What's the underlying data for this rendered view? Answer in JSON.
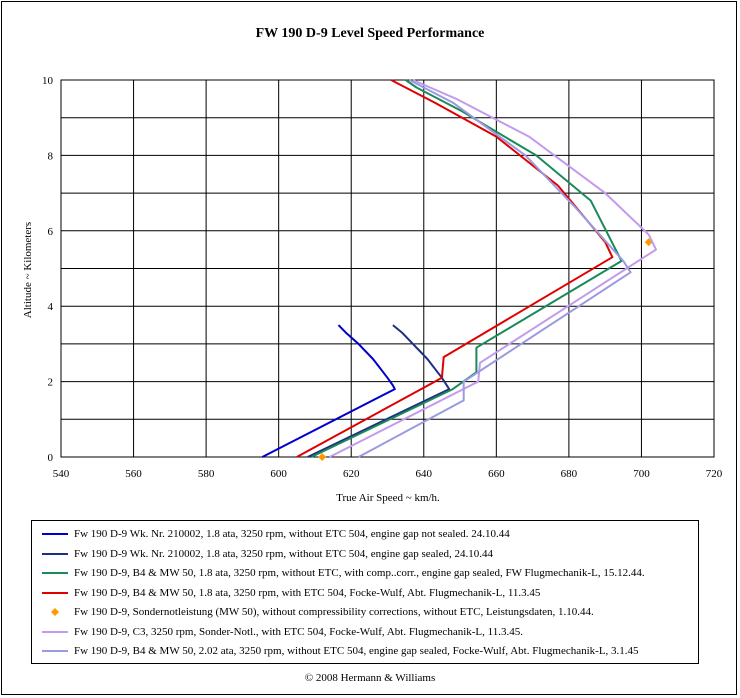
{
  "chart_data": {
    "type": "line",
    "title": "FW 190 D-9 Level Speed Performance",
    "xlabel": "True Air Speed ~ km/h.",
    "ylabel": "Altitude ~ Kilometers",
    "xlim": [
      540,
      720
    ],
    "ylim": [
      0,
      10
    ],
    "x_ticks": [
      "540",
      "560",
      "580",
      "600",
      "620",
      "640",
      "660",
      "680",
      "700",
      "720"
    ],
    "y_ticks": [
      "0",
      "2",
      "4",
      "6",
      "8",
      "10"
    ],
    "grid": true,
    "legend_position": "bottom",
    "series": [
      {
        "name": "Fw 190 D-9 Wk. Nr. 210002, 1.8 ata,  3250 rpm, without ETC 504, engine gap not sealed. 24.10.44",
        "color": "#0000cc",
        "kind": "line",
        "points": [
          [
            595.5,
            0.0
          ],
          [
            632.0,
            1.8
          ],
          [
            631.5,
            1.9
          ],
          [
            630.0,
            2.1
          ],
          [
            626.0,
            2.6
          ],
          [
            622.0,
            3.0
          ],
          [
            618.5,
            3.3
          ],
          [
            616.5,
            3.5
          ]
        ]
      },
      {
        "name": "Fw 190 D-9 Wk. Nr. 210002, 1.8 ata,  3250 rpm, without ETC 504, engine gap sealed, 24.10.44",
        "color": "#1f2f7f",
        "kind": "line",
        "points": [
          [
            608.0,
            0.0
          ],
          [
            647.0,
            1.8
          ],
          [
            645.0,
            2.1
          ],
          [
            641.0,
            2.6
          ],
          [
            637.0,
            3.0
          ],
          [
            634.0,
            3.3
          ],
          [
            631.5,
            3.5
          ]
        ]
      },
      {
        "name": "Fw 190 D-9, B4 & MW 50, 1.8 ata, 3250 rpm, without ETC, with comp..corr., engine gap sealed, FW Flugmechanik-L, 15.12.44.",
        "color": "#1a8a5a",
        "kind": "line",
        "points": [
          [
            609.0,
            0.0
          ],
          [
            648.0,
            1.8
          ],
          [
            654.5,
            2.25
          ],
          [
            654.5,
            2.9
          ],
          [
            694.5,
            5.2
          ],
          [
            686.0,
            6.8
          ],
          [
            671.0,
            8.0
          ],
          [
            650.0,
            9.2
          ],
          [
            638.0,
            9.8
          ],
          [
            635.0,
            10.0
          ]
        ]
      },
      {
        "name": "Fw 190 D-9, B4 & MW 50, 1.8 ata, 3250 rpm, with ETC 504, Focke-Wulf, Abt. Flugmechanik-L, 11.3.45",
        "color": "#e00000",
        "kind": "line",
        "points": [
          [
            605.0,
            0.0
          ],
          [
            645.0,
            2.1
          ],
          [
            645.5,
            2.65
          ],
          [
            692.0,
            5.3
          ],
          [
            690.0,
            5.7
          ],
          [
            677.0,
            7.2
          ],
          [
            660.0,
            8.5
          ],
          [
            643.0,
            9.4
          ],
          [
            631.0,
            10.0
          ]
        ]
      },
      {
        "name": "Fw 190 D-9, Sondernotleistung (MW 50), without compressibility corrections, without ETC, Leistungsdaten, 1.10.44.",
        "color": "#ff9900",
        "kind": "marker",
        "points": [
          [
            612.0,
            0.0
          ],
          [
            702.0,
            5.7
          ]
        ]
      },
      {
        "name": "Fw 190 D-9, C3, 3250 rpm, Sonder-Notl., with ETC 504,  Focke-Wulf, Abt. Flugmechanik-L, 11.3.45.",
        "color": "#c39bec",
        "kind": "line",
        "points": [
          [
            614.0,
            0.0
          ],
          [
            655.0,
            2.0
          ],
          [
            655.5,
            2.5
          ],
          [
            704.0,
            5.5
          ],
          [
            702.0,
            5.9
          ],
          [
            690.0,
            7.0
          ],
          [
            669.0,
            8.5
          ],
          [
            649.0,
            9.5
          ],
          [
            637.0,
            10.0
          ]
        ]
      },
      {
        "name": "Fw 190 D-9, B4 & MW 50, 2.02 ata, 3250 rpm, without ETC 504, engine gap sealed, Focke-Wulf, Abt. Flugmechanik-L, 3.1.45",
        "color": "#9a9ae0",
        "kind": "line",
        "points": [
          [
            622.0,
            0.0
          ],
          [
            651.0,
            1.5
          ],
          [
            651.0,
            2.0
          ],
          [
            697.0,
            4.9
          ],
          [
            695.0,
            5.2
          ],
          [
            682.0,
            6.6
          ],
          [
            668.0,
            8.0
          ],
          [
            648.0,
            9.4
          ],
          [
            636.0,
            10.0
          ]
        ]
      }
    ]
  },
  "copyright": "© 2008 Hermann & Williams"
}
